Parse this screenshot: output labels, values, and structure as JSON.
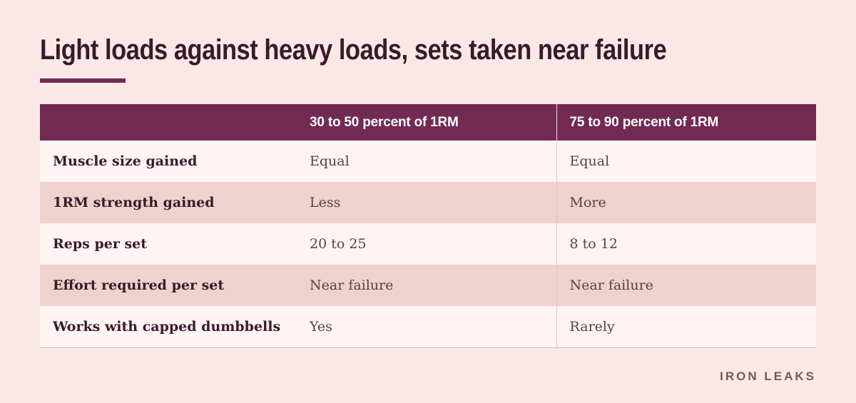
{
  "page": {
    "title": "Light loads against heavy loads, sets taken near failure",
    "brand": "IRON LEAKS"
  },
  "table": {
    "headers": [
      "",
      "30 to 50 percent of 1RM",
      "75 to 90 percent of 1RM"
    ],
    "rows": [
      {
        "label": "Muscle size gained",
        "light": "Equal",
        "heavy": "Equal"
      },
      {
        "label": "1RM strength gained",
        "light": "Less",
        "heavy": "More"
      },
      {
        "label": "Reps per set",
        "light": "20 to 25",
        "heavy": "8 to 12"
      },
      {
        "label": "Effort required per set",
        "light": "Near failure",
        "heavy": "Near failure"
      },
      {
        "label": "Works with capped dumbbells",
        "light": "Yes",
        "heavy": "Rarely"
      }
    ]
  },
  "colors": {
    "background": "#f9e8e6",
    "header": "#722a52",
    "row_light": "#fef4f4",
    "row_dark": "#efd2cd",
    "title_text": "#3a1a2a"
  }
}
